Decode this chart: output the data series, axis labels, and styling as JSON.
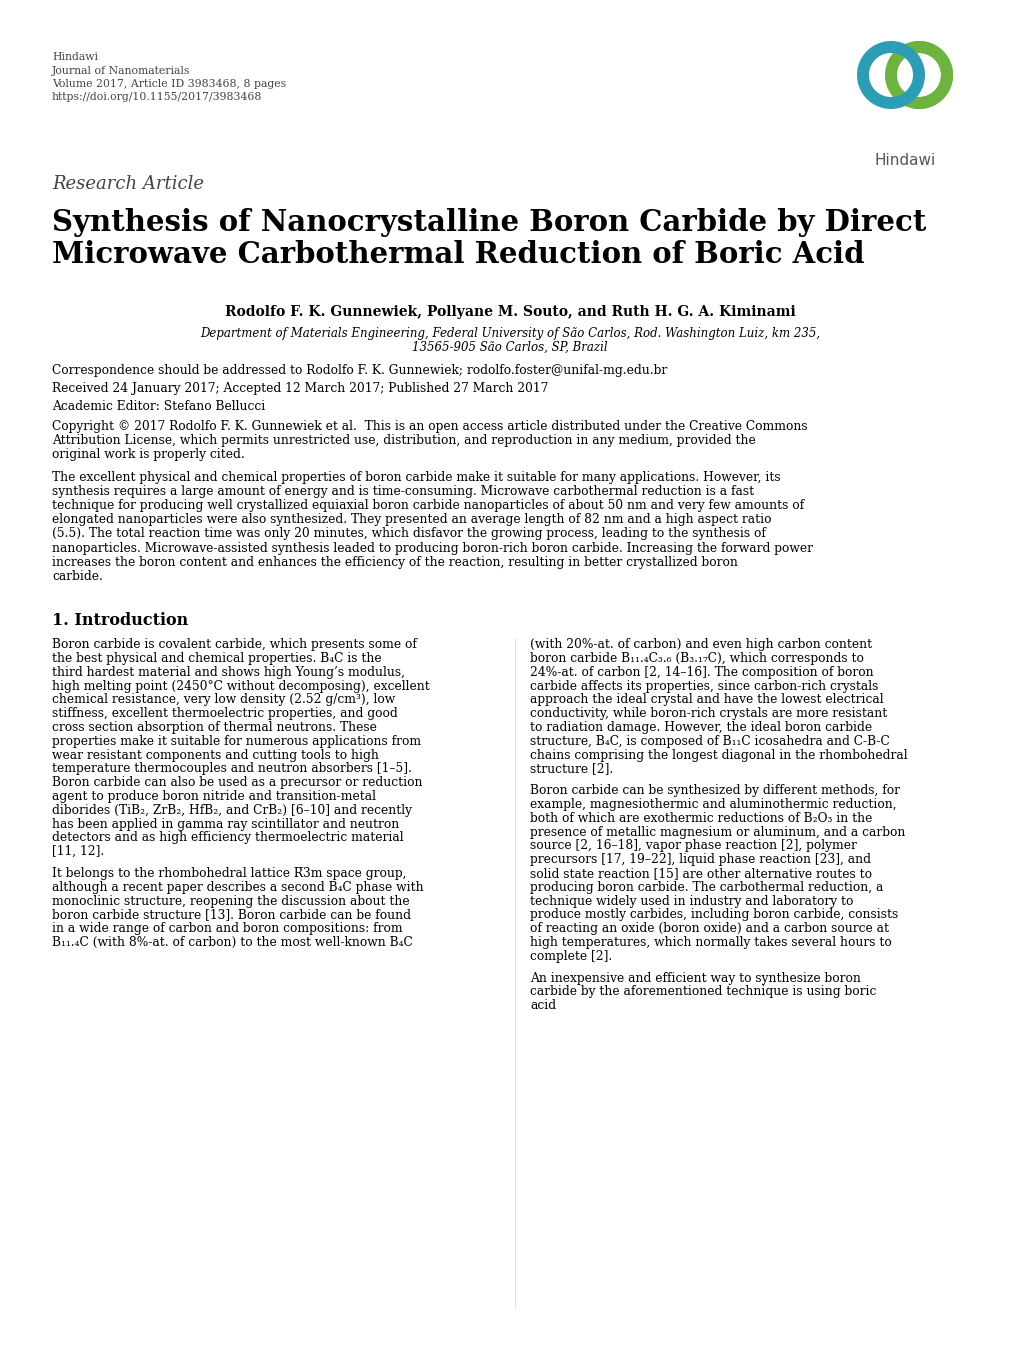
{
  "background_color": "#ffffff",
  "header_lines": [
    "Hindawi",
    "Journal of Nanomaterials",
    "Volume 2017, Article ID 3983468, 8 pages",
    "https://doi.org/10.1155/2017/3983468"
  ],
  "research_article_label": "Research Article",
  "title_line1": "Synthesis of Nanocrystalline Boron Carbide by Direct",
  "title_line2": "Microwave Carbothermal Reduction of Boric Acid",
  "authors": "Rodolfo F. K. Gunnewiek, Pollyane M. Souto, and Ruth H. G. A. Kiminami",
  "affiliation_line1": "Department of Materials Engineering, Federal University of São Carlos, Rod. Washington Luiz, km 235,",
  "affiliation_line2": "13565-905 São Carlos, SP, Brazil",
  "correspondence": "Correspondence should be addressed to Rodolfo F. K. Gunnewiek; rodolfo.foster@unifal-mg.edu.br",
  "received": "Received 24 January 2017; Accepted 12 March 2017; Published 27 March 2017",
  "editor": "Academic Editor: Stefano Bellucci",
  "copyright": "Copyright © 2017 Rodolfo F. K. Gunnewiek et al.  This is an open access article distributed under the Creative Commons Attribution License, which permits unrestricted use, distribution, and reproduction in any medium, provided the original work is properly cited.",
  "abstract": "The excellent physical and chemical properties of boron carbide make it suitable for many applications. However, its synthesis requires a large amount of energy and is time-consuming. Microwave carbothermal reduction is a fast technique for producing well crystallized equiaxial boron carbide nanoparticles of about 50 nm and very few amounts of elongated nanoparticles were also synthesized. They presented an average length of 82 nm and a high aspect ratio (5.5). The total reaction time was only 20 minutes, which disfavor the growing process, leading to the synthesis of nanoparticles. Microwave-assisted synthesis leaded to producing boron-rich boron carbide. Increasing the forward power increases the boron content and enhances the efficiency of the reaction, resulting in better crystallized boron carbide.",
  "section1_title": "1. Introduction",
  "intro_col1_para1": "Boron carbide is covalent carbide, which presents some of the best physical and chemical properties. B₄C is the third hardest material and shows high Young’s modulus, high melting point (2450°C without decomposing), excellent chemical resistance, very low density (2.52 g/cm³), low stiffness, excellent thermoelectric properties, and good cross section absorption of thermal neutrons. These properties make it suitable for numerous applications from wear resistant components and cutting tools to high temperature thermocouples and neutron absorbers [1–5]. Boron carbide can also be used as a precursor or reduction agent to produce boron nitride and transition-metal diborides (TiB₂, ZrB₂, HfB₂, and CrB₂) [6–10] and recently has been applied in gamma ray scintillator and neutron detectors and as high efficiency thermoelectric material [11, 12].",
  "intro_col1_para2": "It belongs to the rhombohedral lattice R̅3m space group, although a recent paper describes a second B₄C phase with monoclinic structure, reopening the discussion about the boron carbide structure [13]. Boron carbide can be found in a wide range of carbon and boron compositions: from B₁₁.₄C (with 8%-at. of carbon) to the most well-known B₄C",
  "intro_col2_para1": "(with 20%-at. of carbon) and even high carbon content boron carbide B₁₁.₄C₃.₆ (B₃.₁₇C), which corresponds to 24%-at. of carbon [2, 14–16]. The composition of boron carbide affects its properties, since carbon-rich crystals approach the ideal crystal and have the lowest electrical conductivity, while boron-rich crystals are more resistant to radiation damage. However, the ideal boron carbide structure, B₄C, is composed of B₁₁C icosahedra and C-B-C chains comprising the longest diagonal in the rhombohedral structure [2].",
  "intro_col2_para2": "Boron carbide can be synthesized by different methods, for example, magnesiothermic and aluminothermic reduction, both of which are exothermic reductions of B₂O₃ in the presence of metallic magnesium or aluminum, and a carbon source [2, 16–18], vapor phase reaction [2], polymer precursors [17, 19–22], liquid phase reaction [23], and solid state reaction [15] are other alternative routes to producing boron carbide. The carbothermal reduction, a technique widely used in industry and laboratory to produce mostly carbides, including boron carbide, consists of reacting an oxide (boron oxide) and a carbon source at high temperatures, which normally takes several hours to complete [2].",
  "intro_col2_para3": "An inexpensive and efficient way to synthesize boron carbide by the aforementioned technique is using boric acid",
  "logo_teal": "#2d9db5",
  "logo_green": "#6db33f",
  "logo_dark_teal": "#1a6b7a",
  "logo_dark_green": "#4a7c2a"
}
